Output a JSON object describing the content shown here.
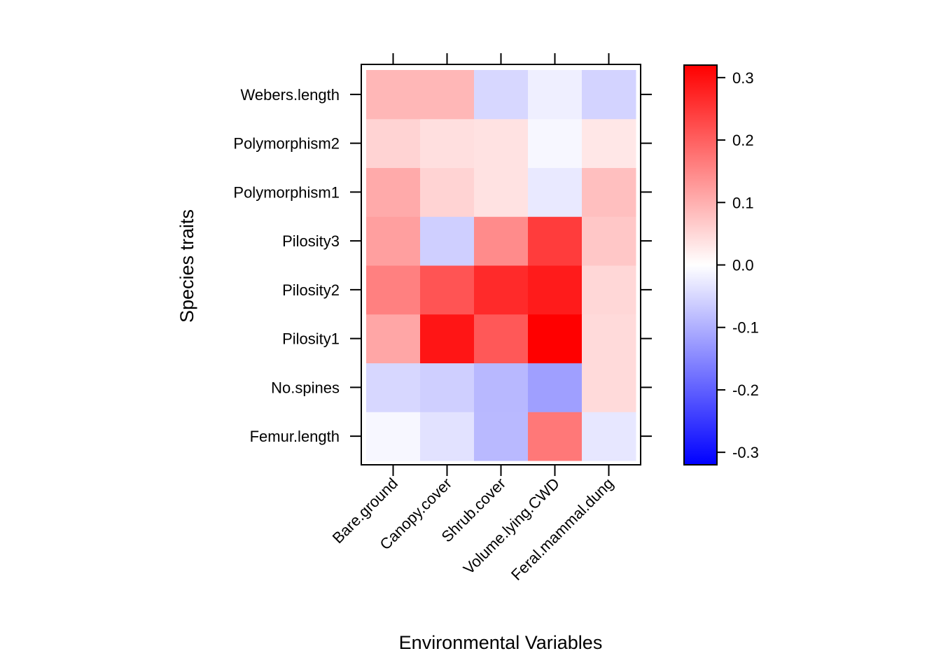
{
  "chart_data": {
    "type": "heatmap",
    "title": "",
    "xlabel": "Environmental Variables",
    "ylabel": "Species traits",
    "x_categories": [
      "Bare.ground",
      "Canopy.cover",
      "Shrub.cover",
      "Volume.lying.CWD",
      "Feral.mammal.dung"
    ],
    "y_categories": [
      "Femur.length",
      "No.spines",
      "Pilosity1",
      "Pilosity2",
      "Pilosity3",
      "Polymorphism1",
      "Polymorphism2",
      "Webers.length"
    ],
    "values": [
      [
        -0.01,
        -0.037,
        -0.088,
        0.17,
        -0.03
      ],
      [
        -0.05,
        -0.06,
        -0.089,
        -0.12,
        0.047
      ],
      [
        0.112,
        0.294,
        0.21,
        0.32,
        0.047
      ],
      [
        0.16,
        0.215,
        0.267,
        0.286,
        0.05
      ],
      [
        0.12,
        -0.06,
        0.145,
        0.245,
        0.07
      ],
      [
        0.107,
        0.055,
        0.037,
        -0.027,
        0.08
      ],
      [
        0.055,
        0.04,
        0.037,
        -0.01,
        0.03
      ],
      [
        0.09,
        0.09,
        -0.05,
        -0.02,
        -0.055
      ]
    ],
    "colorbar": {
      "range": [
        -0.32,
        0.32
      ],
      "ticks": [
        0.3,
        0.2,
        0.1,
        0.0,
        -0.1,
        -0.2,
        -0.3
      ],
      "tick_labels": [
        "0.3",
        "0.2",
        "0.1",
        "0.0",
        "-0.1",
        "-0.2",
        "-0.3"
      ],
      "low_color": "#0000FF",
      "mid_color": "#FFFFFF",
      "high_color": "#FF0000"
    },
    "grid": false,
    "legend": "right"
  }
}
